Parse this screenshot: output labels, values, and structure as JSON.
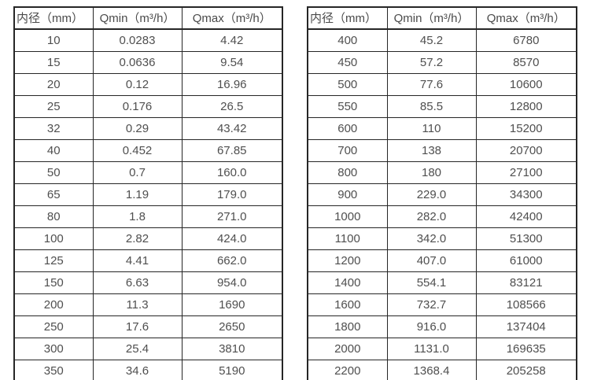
{
  "colors": {
    "background": "#ffffff",
    "border": "#262626",
    "text": "#4f4f4f"
  },
  "tables": [
    {
      "name": "small-diameter-flow-table",
      "headers": [
        "内径（mm）",
        "Qmin（m³/h）",
        "Qmax（m³/h）"
      ],
      "rows": [
        [
          "10",
          "0.0283",
          "4.42"
        ],
        [
          "15",
          "0.0636",
          "9.54"
        ],
        [
          "20",
          "0.12",
          "16.96"
        ],
        [
          "25",
          "0.176",
          "26.5"
        ],
        [
          "32",
          "0.29",
          "43.42"
        ],
        [
          "40",
          "0.452",
          "67.85"
        ],
        [
          "50",
          "0.7",
          "160.0"
        ],
        [
          "65",
          "1.19",
          "179.0"
        ],
        [
          "80",
          "1.8",
          "271.0"
        ],
        [
          "100",
          "2.82",
          "424.0"
        ],
        [
          "125",
          "4.41",
          "662.0"
        ],
        [
          "150",
          "6.63",
          "954.0"
        ],
        [
          "200",
          "11.3",
          "1690"
        ],
        [
          "250",
          "17.6",
          "2650"
        ],
        [
          "300",
          "25.4",
          "3810"
        ],
        [
          "350",
          "34.6",
          "5190"
        ]
      ]
    },
    {
      "name": "large-diameter-flow-table",
      "headers": [
        "内径（mm）",
        "Qmin（m³/h）",
        "Qmax（m³/h）"
      ],
      "rows": [
        [
          "400",
          "45.2",
          "6780"
        ],
        [
          "450",
          "57.2",
          "8570"
        ],
        [
          "500",
          "77.6",
          "10600"
        ],
        [
          "550",
          "85.5",
          "12800"
        ],
        [
          "600",
          "110",
          "15200"
        ],
        [
          "700",
          "138",
          "20700"
        ],
        [
          "800",
          "180",
          "27100"
        ],
        [
          "900",
          "229.0",
          "34300"
        ],
        [
          "1000",
          "282.0",
          "42400"
        ],
        [
          "1100",
          "342.0",
          "51300"
        ],
        [
          "1200",
          "407.0",
          "61000"
        ],
        [
          "1400",
          "554.1",
          "83121"
        ],
        [
          "1600",
          "732.7",
          "108566"
        ],
        [
          "1800",
          "916.0",
          "137404"
        ],
        [
          "2000",
          "1131.0",
          "169635"
        ],
        [
          "2200",
          "1368.4",
          "205258"
        ]
      ]
    }
  ]
}
